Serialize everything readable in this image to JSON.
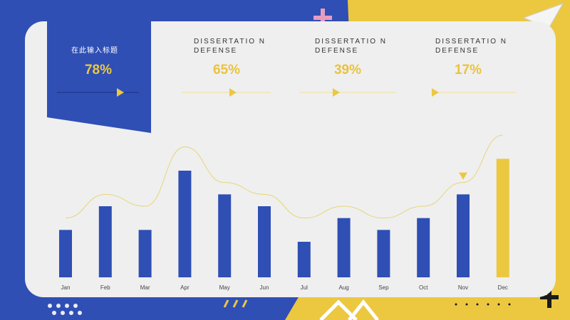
{
  "kpis": [
    {
      "label": "在此输入标题",
      "value": "78%"
    },
    {
      "label": "DISSERTATIO N DEFENSE",
      "value": "65%"
    },
    {
      "label": "DISSERTATIO N DEFENSE",
      "value": "39%"
    },
    {
      "label": "DISSERTATIO N DEFENSE",
      "value": "17%"
    }
  ],
  "colors": {
    "blue": "#2f4fb5",
    "yellow": "#ecc841",
    "panel": "#efefef",
    "pink": "#e89cc0",
    "dark": "#1a1a1a"
  },
  "chart_data": {
    "type": "bar",
    "categories": [
      "Jan",
      "Feb",
      "Mar",
      "Apr",
      "May",
      "Jun",
      "Jul",
      "Aug",
      "Sep",
      "Oct",
      "Nov",
      "Dec"
    ],
    "values": [
      4,
      6,
      4,
      9,
      7,
      6,
      3,
      5,
      4,
      5,
      7,
      10
    ],
    "highlight_index": 11,
    "trend_line": [
      5,
      7,
      6,
      11,
      8,
      7,
      5,
      6,
      5,
      6,
      8,
      12
    ],
    "ylim": [
      0,
      12
    ],
    "grid": false,
    "title": "",
    "xlabel": "",
    "ylabel": ""
  }
}
